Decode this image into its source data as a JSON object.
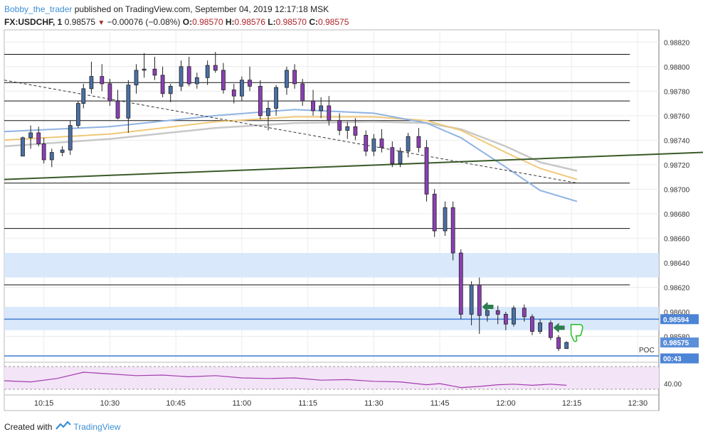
{
  "header": {
    "author": "Bobby_the_trader",
    "published_text": "published on TradingView.com, September 04, 2019 12:17:18 MSK",
    "symbol": "FX:USDCHF, 1",
    "last": "0.98575",
    "change": "−0.00076 (−0.08%)",
    "o_label": "O:",
    "o_value": "0.98570",
    "h_label": "H:",
    "h_value": "0.98576",
    "l_label": "L:",
    "l_value": "0.98570",
    "c_label": "C:",
    "c_value": "0.98575"
  },
  "footer": {
    "created_with": "Created with",
    "brand": "TradingView"
  },
  "colors": {
    "bull": "#4a6fa5",
    "bear": "#8b3fb5",
    "up_wick": "#4a6fa5",
    "trend_green": "#3a5a28",
    "ema_blue": "#8fb3e3",
    "ema_orange": "#f0c878",
    "ema_grey": "#c8c8c8",
    "zone_fill": "#d6e6fb",
    "level_blue": "#4c84d6",
    "rsi_line": "#a33cb0",
    "rsi_fill": "#f3e4f7"
  },
  "chart_data": {
    "type": "candlestick",
    "symbol": "FX:USDCHF",
    "interval": "1",
    "x_ticks": [
      "10:15",
      "10:30",
      "10:45",
      "11:00",
      "11:15",
      "11:30",
      "11:45",
      "12:00",
      "12:15",
      "12:30"
    ],
    "y_ticks": [
      "0.98820",
      "0.98800",
      "0.98780",
      "0.98760",
      "0.98740",
      "0.98720",
      "0.98700",
      "0.98680",
      "0.98660",
      "0.98640",
      "0.98620",
      "0.98600",
      "0.98580"
    ],
    "ylim": [
      0.9856,
      0.9883
    ],
    "price_labels": [
      {
        "text": "0.98594",
        "value": 0.98594
      },
      {
        "text": "0.98575",
        "value": 0.98575
      },
      {
        "text": "00:43",
        "value": 0.98562
      }
    ],
    "horizontal_levels": [
      0.9881,
      0.98787,
      0.98772,
      0.98756,
      0.98705,
      0.98668,
      0.98622
    ],
    "zones": [
      [
        0.98628,
        0.98648
      ],
      [
        0.98585,
        0.98604
      ]
    ],
    "blue_levels": [
      0.98594,
      0.98564
    ],
    "poc_label": "POC",
    "candles": [
      [
        10.17,
        0.98727,
        0.98743,
        0.98727,
        0.98742
      ],
      [
        10.2,
        0.98742,
        0.98752,
        0.98733,
        0.98746
      ],
      [
        10.23,
        0.98746,
        0.98751,
        0.98735,
        0.98737
      ],
      [
        10.25,
        0.98737,
        0.98742,
        0.98721,
        0.98724
      ],
      [
        10.28,
        0.98724,
        0.98733,
        0.98718,
        0.9873
      ],
      [
        10.32,
        0.9873,
        0.98735,
        0.98727,
        0.98732
      ],
      [
        10.35,
        0.98732,
        0.98756,
        0.98728,
        0.98752
      ],
      [
        10.38,
        0.98752,
        0.98772,
        0.9875,
        0.9877
      ],
      [
        10.4,
        0.9877,
        0.98786,
        0.98766,
        0.98782
      ],
      [
        10.43,
        0.98782,
        0.98804,
        0.98778,
        0.98792
      ],
      [
        10.47,
        0.98792,
        0.98802,
        0.9878,
        0.98786
      ],
      [
        10.5,
        0.98786,
        0.9879,
        0.98768,
        0.98772
      ],
      [
        10.53,
        0.98772,
        0.98781,
        0.98757,
        0.98758
      ],
      [
        10.57,
        0.98758,
        0.98789,
        0.98746,
        0.98785
      ],
      [
        10.6,
        0.98785,
        0.98802,
        0.98778,
        0.98797
      ],
      [
        10.63,
        0.98797,
        0.98811,
        0.98791,
        0.98798
      ],
      [
        10.67,
        0.98798,
        0.98808,
        0.98789,
        0.98793
      ],
      [
        10.7,
        0.98793,
        0.988,
        0.98775,
        0.98778
      ],
      [
        10.73,
        0.98778,
        0.98786,
        0.98771,
        0.98784
      ],
      [
        10.77,
        0.98784,
        0.98805,
        0.9878,
        0.988
      ],
      [
        10.8,
        0.988,
        0.98808,
        0.98784,
        0.98786
      ],
      [
        10.83,
        0.98786,
        0.98795,
        0.98782,
        0.98791
      ],
      [
        10.87,
        0.98791,
        0.98805,
        0.98785,
        0.98801
      ],
      [
        10.9,
        0.98801,
        0.98812,
        0.98795,
        0.98797
      ],
      [
        10.93,
        0.98797,
        0.98803,
        0.98778,
        0.98781
      ],
      [
        10.97,
        0.98781,
        0.98786,
        0.9877,
        0.98776
      ],
      [
        11.0,
        0.98776,
        0.98792,
        0.98772,
        0.98789
      ],
      [
        11.03,
        0.98789,
        0.988,
        0.9878,
        0.98784
      ],
      [
        11.07,
        0.98784,
        0.98789,
        0.98757,
        0.9876
      ],
      [
        11.1,
        0.9876,
        0.98772,
        0.98748,
        0.98766
      ],
      [
        11.13,
        0.98766,
        0.98785,
        0.9876,
        0.98783
      ],
      [
        11.17,
        0.98783,
        0.988,
        0.98777,
        0.98797
      ],
      [
        11.2,
        0.98797,
        0.98802,
        0.98782,
        0.98786
      ],
      [
        11.23,
        0.98786,
        0.9879,
        0.98768,
        0.98772
      ],
      [
        11.27,
        0.98772,
        0.98781,
        0.9876,
        0.98764
      ],
      [
        11.3,
        0.98764,
        0.98775,
        0.98758,
        0.98768
      ],
      [
        11.33,
        0.98768,
        0.98776,
        0.98752,
        0.98756
      ],
      [
        11.37,
        0.98756,
        0.98762,
        0.98744,
        0.98748
      ],
      [
        11.4,
        0.98748,
        0.98755,
        0.98741,
        0.98751
      ],
      [
        11.43,
        0.98751,
        0.98758,
        0.9874,
        0.98744
      ],
      [
        11.47,
        0.98744,
        0.98748,
        0.98727,
        0.98731
      ],
      [
        11.5,
        0.98731,
        0.98745,
        0.98727,
        0.98741
      ],
      [
        11.53,
        0.98741,
        0.98749,
        0.9873,
        0.98734
      ],
      [
        11.57,
        0.98734,
        0.98739,
        0.98718,
        0.98721
      ],
      [
        11.6,
        0.98721,
        0.98734,
        0.98718,
        0.98731
      ],
      [
        11.63,
        0.98731,
        0.98746,
        0.98726,
        0.98743
      ],
      [
        11.67,
        0.98743,
        0.9875,
        0.9873,
        0.98734
      ],
      [
        11.7,
        0.98734,
        0.9874,
        0.9869,
        0.98696
      ],
      [
        11.73,
        0.98696,
        0.987,
        0.98661,
        0.98666
      ],
      [
        11.77,
        0.98666,
        0.9869,
        0.98662,
        0.98685
      ],
      [
        11.8,
        0.98685,
        0.9869,
        0.98642,
        0.98648
      ],
      [
        11.83,
        0.98648,
        0.98651,
        0.98594,
        0.98598
      ],
      [
        11.87,
        0.98598,
        0.98625,
        0.98589,
        0.98622
      ],
      [
        11.9,
        0.98622,
        0.98628,
        0.98582,
        0.98597
      ],
      [
        11.93,
        0.98597,
        0.98607,
        0.98592,
        0.98601
      ],
      [
        11.97,
        0.98601,
        0.98605,
        0.9859,
        0.98598
      ],
      [
        12.0,
        0.98598,
        0.986,
        0.98585,
        0.9859
      ],
      [
        12.03,
        0.9859,
        0.98605,
        0.98588,
        0.98603
      ],
      [
        12.07,
        0.98603,
        0.98606,
        0.98592,
        0.98596
      ],
      [
        12.1,
        0.98596,
        0.98598,
        0.98581,
        0.98584
      ],
      [
        12.13,
        0.98584,
        0.98594,
        0.98582,
        0.98591
      ],
      [
        12.17,
        0.98591,
        0.98593,
        0.98577,
        0.98579
      ],
      [
        12.2,
        0.98579,
        0.98581,
        0.98568,
        0.9857
      ],
      [
        12.23,
        0.9857,
        0.98576,
        0.9857,
        0.98575
      ]
    ],
    "ema_blue": [
      [
        10.1,
        0.98747
      ],
      [
        10.5,
        0.98751
      ],
      [
        10.9,
        0.9876
      ],
      [
        11.2,
        0.98765
      ],
      [
        11.5,
        0.98762
      ],
      [
        11.7,
        0.98754
      ],
      [
        11.83,
        0.98742
      ],
      [
        12.0,
        0.98718
      ],
      [
        12.13,
        0.98699
      ],
      [
        12.27,
        0.9869
      ]
    ],
    "ema_orange": [
      [
        10.1,
        0.9874
      ],
      [
        10.5,
        0.98745
      ],
      [
        10.9,
        0.98755
      ],
      [
        11.2,
        0.98759
      ],
      [
        11.5,
        0.98759
      ],
      [
        11.7,
        0.98756
      ],
      [
        11.83,
        0.98748
      ],
      [
        12.0,
        0.9873
      ],
      [
        12.13,
        0.98717
      ],
      [
        12.27,
        0.98708
      ]
    ],
    "ema_grey": [
      [
        10.1,
        0.98735
      ],
      [
        10.5,
        0.98741
      ],
      [
        10.9,
        0.9875
      ],
      [
        11.2,
        0.98754
      ],
      [
        11.5,
        0.98755
      ],
      [
        11.7,
        0.98754
      ],
      [
        11.83,
        0.98749
      ],
      [
        12.0,
        0.98735
      ],
      [
        12.13,
        0.98722
      ],
      [
        12.27,
        0.98715
      ]
    ],
    "green_trendline": [
      [
        10.1,
        0.98708
      ],
      [
        13.1,
        0.98733
      ]
    ],
    "dashed_trendline": [
      [
        10.1,
        0.98789
      ],
      [
        12.27,
        0.98705
      ]
    ],
    "rsi": {
      "tick_label": "40.00",
      "ylim": [
        25,
        75
      ],
      "bands": [
        30,
        70
      ],
      "values": [
        [
          10.1,
          45
        ],
        [
          10.2,
          43
        ],
        [
          10.3,
          49
        ],
        [
          10.4,
          60
        ],
        [
          10.5,
          57
        ],
        [
          10.6,
          54
        ],
        [
          10.7,
          55
        ],
        [
          10.8,
          52
        ],
        [
          10.9,
          54
        ],
        [
          11.0,
          50
        ],
        [
          11.1,
          49
        ],
        [
          11.2,
          50
        ],
        [
          11.3,
          46
        ],
        [
          11.4,
          47
        ],
        [
          11.5,
          44
        ],
        [
          11.6,
          43
        ],
        [
          11.7,
          38
        ],
        [
          11.75,
          40
        ],
        [
          11.83,
          33
        ],
        [
          11.9,
          35
        ],
        [
          11.97,
          38
        ],
        [
          12.03,
          39
        ],
        [
          12.1,
          37
        ],
        [
          12.17,
          39
        ],
        [
          12.23,
          37
        ]
      ]
    }
  }
}
